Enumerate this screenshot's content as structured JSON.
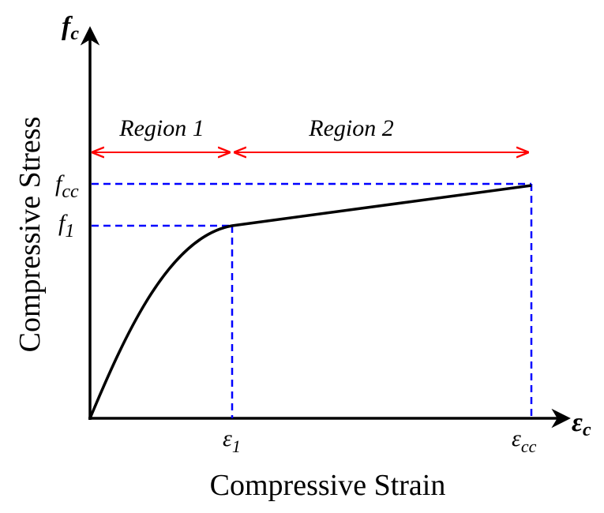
{
  "diagram": {
    "y_axis_symbol": {
      "main": "f",
      "sub": "c"
    },
    "x_axis_symbol": {
      "main": "ε",
      "sub": "c"
    },
    "y_axis_title": "Compressive Stress",
    "x_axis_title": "Compressive Strain",
    "regions": [
      {
        "label": "Region 1"
      },
      {
        "label": "Region 2"
      }
    ],
    "stress_marks": [
      {
        "main": "f",
        "sub": "cc"
      },
      {
        "main": "f",
        "sub": "1"
      }
    ],
    "strain_marks": [
      {
        "main": "ε",
        "sub": "1"
      },
      {
        "main": "ε",
        "sub": "cc"
      }
    ],
    "colors": {
      "curve": "#000000",
      "guides": "#0000ff",
      "region_arrows": "#ff0000"
    }
  }
}
